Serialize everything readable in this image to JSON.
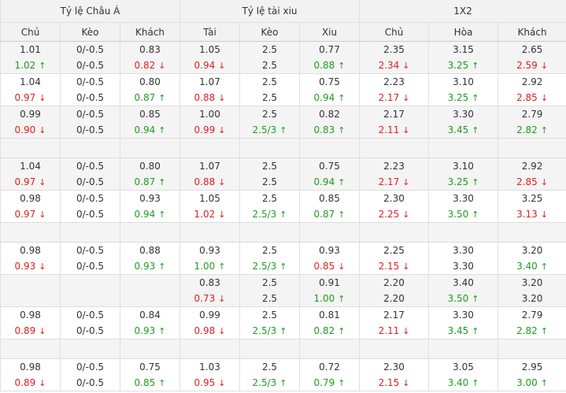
{
  "header": {
    "groups": [
      "Tỷ lệ Châu Á",
      "Tỷ lệ tài xiu",
      "1X2"
    ],
    "columns": [
      "Chủ",
      "Kèo",
      "Khách",
      "Tài",
      "Kèo",
      "Xiu",
      "Chủ",
      "Hòa",
      "Khách"
    ]
  },
  "rows": [
    {
      "kind": "data",
      "shade": true,
      "cells": [
        [
          {
            "v": "1.01"
          },
          {
            "v": "1.02",
            "d": "up"
          }
        ],
        [
          {
            "v": "0/-0.5"
          },
          {
            "v": "0/-0.5"
          }
        ],
        [
          {
            "v": "0.83"
          },
          {
            "v": "0.82",
            "d": "down"
          }
        ],
        [
          {
            "v": "1.05"
          },
          {
            "v": "0.94",
            "d": "down"
          }
        ],
        [
          {
            "v": "2.5"
          },
          {
            "v": "2.5"
          }
        ],
        [
          {
            "v": "0.77"
          },
          {
            "v": "0.88",
            "d": "up"
          }
        ],
        [
          {
            "v": "2.35"
          },
          {
            "v": "2.34",
            "d": "down"
          }
        ],
        [
          {
            "v": "3.15"
          },
          {
            "v": "3.25",
            "d": "up"
          }
        ],
        [
          {
            "v": "2.65"
          },
          {
            "v": "2.59",
            "d": "down"
          }
        ]
      ]
    },
    {
      "kind": "data",
      "shade": false,
      "cells": [
        [
          {
            "v": "1.04"
          },
          {
            "v": "0.97",
            "d": "down"
          }
        ],
        [
          {
            "v": "0/-0.5"
          },
          {
            "v": "0/-0.5"
          }
        ],
        [
          {
            "v": "0.80"
          },
          {
            "v": "0.87",
            "d": "up"
          }
        ],
        [
          {
            "v": "1.07"
          },
          {
            "v": "0.88",
            "d": "down"
          }
        ],
        [
          {
            "v": "2.5"
          },
          {
            "v": "2.5"
          }
        ],
        [
          {
            "v": "0.75"
          },
          {
            "v": "0.94",
            "d": "up"
          }
        ],
        [
          {
            "v": "2.23"
          },
          {
            "v": "2.17",
            "d": "down"
          }
        ],
        [
          {
            "v": "3.10"
          },
          {
            "v": "3.25",
            "d": "up"
          }
        ],
        [
          {
            "v": "2.92"
          },
          {
            "v": "2.85",
            "d": "down"
          }
        ]
      ]
    },
    {
      "kind": "data",
      "shade": true,
      "cells": [
        [
          {
            "v": "0.99"
          },
          {
            "v": "0.90",
            "d": "down"
          }
        ],
        [
          {
            "v": "0/-0.5"
          },
          {
            "v": "0/-0.5"
          }
        ],
        [
          {
            "v": "0.85"
          },
          {
            "v": "0.94",
            "d": "up"
          }
        ],
        [
          {
            "v": "1.00"
          },
          {
            "v": "0.99",
            "d": "down"
          }
        ],
        [
          {
            "v": "2.5"
          },
          {
            "v": "2.5/3",
            "d": "up"
          }
        ],
        [
          {
            "v": "0.82"
          },
          {
            "v": "0.83",
            "d": "up"
          }
        ],
        [
          {
            "v": "2.17"
          },
          {
            "v": "2.11",
            "d": "down"
          }
        ],
        [
          {
            "v": "3.30"
          },
          {
            "v": "3.45",
            "d": "up"
          }
        ],
        [
          {
            "v": "2.79"
          },
          {
            "v": "2.82",
            "d": "up"
          }
        ]
      ]
    },
    {
      "kind": "sep"
    },
    {
      "kind": "data",
      "shade": true,
      "cells": [
        [
          {
            "v": "1.04"
          },
          {
            "v": "0.97",
            "d": "down"
          }
        ],
        [
          {
            "v": "0/-0.5"
          },
          {
            "v": "0/-0.5"
          }
        ],
        [
          {
            "v": "0.80"
          },
          {
            "v": "0.87",
            "d": "up"
          }
        ],
        [
          {
            "v": "1.07"
          },
          {
            "v": "0.88",
            "d": "down"
          }
        ],
        [
          {
            "v": "2.5"
          },
          {
            "v": "2.5"
          }
        ],
        [
          {
            "v": "0.75"
          },
          {
            "v": "0.94",
            "d": "up"
          }
        ],
        [
          {
            "v": "2.23"
          },
          {
            "v": "2.17",
            "d": "down"
          }
        ],
        [
          {
            "v": "3.10"
          },
          {
            "v": "3.25",
            "d": "up"
          }
        ],
        [
          {
            "v": "2.92"
          },
          {
            "v": "2.85",
            "d": "down"
          }
        ]
      ]
    },
    {
      "kind": "data",
      "shade": false,
      "cells": [
        [
          {
            "v": "0.98"
          },
          {
            "v": "0.97",
            "d": "down"
          }
        ],
        [
          {
            "v": "0/-0.5"
          },
          {
            "v": "0/-0.5"
          }
        ],
        [
          {
            "v": "0.93"
          },
          {
            "v": "0.94",
            "d": "up"
          }
        ],
        [
          {
            "v": "1.05"
          },
          {
            "v": "1.02",
            "d": "down"
          }
        ],
        [
          {
            "v": "2.5"
          },
          {
            "v": "2.5/3",
            "d": "up"
          }
        ],
        [
          {
            "v": "0.85"
          },
          {
            "v": "0.87",
            "d": "up"
          }
        ],
        [
          {
            "v": "2.30"
          },
          {
            "v": "2.25",
            "d": "down"
          }
        ],
        [
          {
            "v": "3.30"
          },
          {
            "v": "3.50",
            "d": "up"
          }
        ],
        [
          {
            "v": "3.25"
          },
          {
            "v": "3.13",
            "d": "down"
          }
        ]
      ]
    },
    {
      "kind": "sep"
    },
    {
      "kind": "data",
      "shade": false,
      "cells": [
        [
          {
            "v": "0.98"
          },
          {
            "v": "0.93",
            "d": "down"
          }
        ],
        [
          {
            "v": "0/-0.5"
          },
          {
            "v": "0/-0.5"
          }
        ],
        [
          {
            "v": "0.88"
          },
          {
            "v": "0.93",
            "d": "up"
          }
        ],
        [
          {
            "v": "0.93"
          },
          {
            "v": "1.00",
            "d": "up"
          }
        ],
        [
          {
            "v": "2.5"
          },
          {
            "v": "2.5/3",
            "d": "up"
          }
        ],
        [
          {
            "v": "0.93"
          },
          {
            "v": "0.85",
            "d": "down"
          }
        ],
        [
          {
            "v": "2.25"
          },
          {
            "v": "2.15",
            "d": "down"
          }
        ],
        [
          {
            "v": "3.30"
          },
          {
            "v": "3.30"
          }
        ],
        [
          {
            "v": "3.20"
          },
          {
            "v": "3.40",
            "d": "up"
          }
        ]
      ]
    },
    {
      "kind": "data",
      "shade": true,
      "cells": [
        [
          {
            "v": ""
          },
          {
            "v": ""
          }
        ],
        [
          {
            "v": ""
          },
          {
            "v": ""
          }
        ],
        [
          {
            "v": ""
          },
          {
            "v": ""
          }
        ],
        [
          {
            "v": "0.83"
          },
          {
            "v": "0.73",
            "d": "down"
          }
        ],
        [
          {
            "v": "2.5"
          },
          {
            "v": "2.5"
          }
        ],
        [
          {
            "v": "0.91"
          },
          {
            "v": "1.00",
            "d": "up"
          }
        ],
        [
          {
            "v": "2.20"
          },
          {
            "v": "2.20"
          }
        ],
        [
          {
            "v": "3.40"
          },
          {
            "v": "3.50",
            "d": "up"
          }
        ],
        [
          {
            "v": "3.20"
          },
          {
            "v": "3.20"
          }
        ]
      ]
    },
    {
      "kind": "data",
      "shade": false,
      "cells": [
        [
          {
            "v": "0.98"
          },
          {
            "v": "0.89",
            "d": "down"
          }
        ],
        [
          {
            "v": "0/-0.5"
          },
          {
            "v": "0/-0.5"
          }
        ],
        [
          {
            "v": "0.84"
          },
          {
            "v": "0.93",
            "d": "up"
          }
        ],
        [
          {
            "v": "0.99"
          },
          {
            "v": "0.98",
            "d": "down"
          }
        ],
        [
          {
            "v": "2.5"
          },
          {
            "v": "2.5/3",
            "d": "up"
          }
        ],
        [
          {
            "v": "0.81"
          },
          {
            "v": "0.82",
            "d": "up"
          }
        ],
        [
          {
            "v": "2.17"
          },
          {
            "v": "2.11",
            "d": "down"
          }
        ],
        [
          {
            "v": "3.30"
          },
          {
            "v": "3.45",
            "d": "up"
          }
        ],
        [
          {
            "v": "2.79"
          },
          {
            "v": "2.82",
            "d": "up"
          }
        ]
      ]
    },
    {
      "kind": "sep"
    },
    {
      "kind": "data",
      "shade": false,
      "cells": [
        [
          {
            "v": "0.98"
          },
          {
            "v": "0.89",
            "d": "down"
          }
        ],
        [
          {
            "v": "0/-0.5"
          },
          {
            "v": "0/-0.5"
          }
        ],
        [
          {
            "v": "0.75"
          },
          {
            "v": "0.85",
            "d": "up"
          }
        ],
        [
          {
            "v": "1.03"
          },
          {
            "v": "0.95",
            "d": "down"
          }
        ],
        [
          {
            "v": "2.5"
          },
          {
            "v": "2.5/3",
            "d": "up"
          }
        ],
        [
          {
            "v": "0.72"
          },
          {
            "v": "0.79",
            "d": "up"
          }
        ],
        [
          {
            "v": "2.30"
          },
          {
            "v": "2.15",
            "d": "down"
          }
        ],
        [
          {
            "v": "3.05"
          },
          {
            "v": "3.40",
            "d": "up"
          }
        ],
        [
          {
            "v": "2.95"
          },
          {
            "v": "3.00",
            "d": "up"
          }
        ]
      ]
    }
  ]
}
